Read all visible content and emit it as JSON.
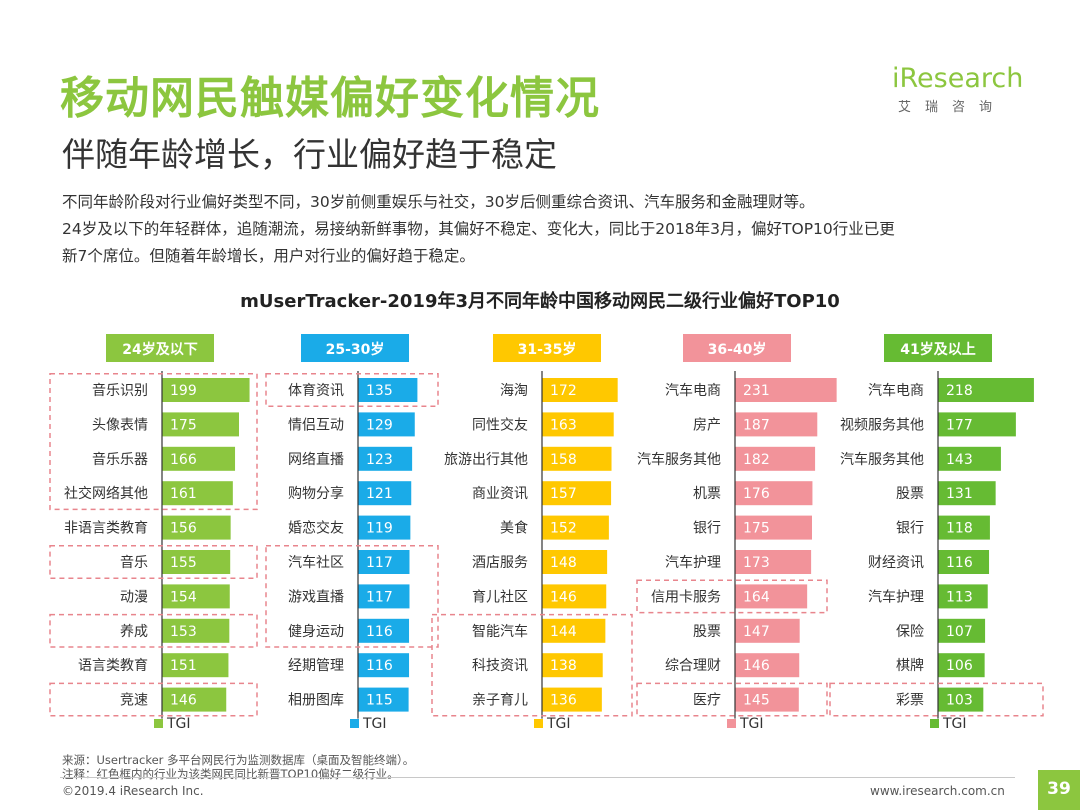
{
  "header": {
    "title": "移动网民触媒偏好变化情况",
    "subtitle": "伴随年龄增长，行业偏好趋于稳定",
    "desc_lines": [
      "不同年龄阶段对行业偏好类型不同，30岁前侧重娱乐与社交，30岁后侧重综合资讯、汽车服务和金融理财等。",
      "24岁及以下的年轻群体，追随潮流，易接纳新鲜事物，其偏好不稳定、变化大，同比于2018年3月，偏好TOP10行业已更",
      "新7个席位。但随着年龄增长，用户对行业的偏好趋于稳定。"
    ]
  },
  "logo": {
    "brand": "iResearch",
    "chinese": "艾瑞咨询"
  },
  "colors": {
    "title_green": "#8cc63f"
  },
  "chart_data": {
    "type": "bar",
    "orientation": "horizontal",
    "title": "mUserTracker-2019年3月不同年龄中国移动网民二级行业偏好TOP10",
    "legend_label": "TGI",
    "groups": [
      {
        "name": "24岁及以下",
        "color": "#8cc63f",
        "categories": [
          "音乐识别",
          "头像表情",
          "音乐乐器",
          "社交网络其他",
          "非语言类教育",
          "音乐",
          "动漫",
          "养成",
          "语言类教育",
          "竞速"
        ],
        "values": [
          199,
          175,
          166,
          161,
          156,
          155,
          154,
          153,
          151,
          146
        ],
        "highlight_boxes": [
          [
            0,
            3
          ],
          [
            5,
            5
          ],
          [
            7,
            7
          ],
          [
            9,
            9
          ]
        ]
      },
      {
        "name": "25-30岁",
        "color": "#1aabe8",
        "categories": [
          "体育资讯",
          "情侣互动",
          "网络直播",
          "购物分享",
          "婚恋交友",
          "汽车社区",
          "游戏直播",
          "健身运动",
          "经期管理",
          "相册图库"
        ],
        "values": [
          135,
          129,
          123,
          121,
          119,
          117,
          117,
          116,
          116,
          115
        ],
        "highlight_boxes": [
          [
            0,
            0
          ],
          [
            5,
            7
          ]
        ]
      },
      {
        "name": "31-35岁",
        "color": "#ffc800",
        "categories": [
          "海淘",
          "同性交友",
          "旅游出行其他",
          "商业资讯",
          "美食",
          "酒店服务",
          "育儿社区",
          "智能汽车",
          "科技资讯",
          "亲子育儿"
        ],
        "values": [
          172,
          163,
          158,
          157,
          152,
          148,
          146,
          144,
          138,
          136
        ],
        "highlight_boxes": [
          [
            7,
            9
          ]
        ]
      },
      {
        "name": "36-40岁",
        "color": "#f2939a",
        "categories": [
          "汽车电商",
          "房产",
          "汽车服务其他",
          "机票",
          "银行",
          "汽车护理",
          "信用卡服务",
          "股票",
          "综合理财",
          "医疗"
        ],
        "values": [
          231,
          187,
          182,
          176,
          175,
          173,
          164,
          147,
          146,
          145
        ],
        "highlight_boxes": [
          [
            6,
            6
          ],
          [
            9,
            9
          ]
        ]
      },
      {
        "name": "41岁及以上",
        "color": "#66bb33",
        "categories": [
          "汽车电商",
          "视频服务其他",
          "汽车服务其他",
          "股票",
          "银行",
          "财经资讯",
          "汽车护理",
          "保险",
          "棋牌",
          "彩票"
        ],
        "values": [
          218,
          177,
          143,
          131,
          118,
          116,
          113,
          107,
          106,
          103
        ],
        "highlight_boxes": [
          [
            9,
            9
          ]
        ]
      }
    ]
  },
  "footer": {
    "source": "来源：Usertracker 多平台网民行为监测数据库（桌面及智能终端）。",
    "note": "注释：红色框内的行业为该类网民同比新晋TOP10偏好二级行业。",
    "copyright": "©2019.4 iResearch Inc.",
    "website": "www.iresearch.com.cn",
    "page": "39"
  }
}
